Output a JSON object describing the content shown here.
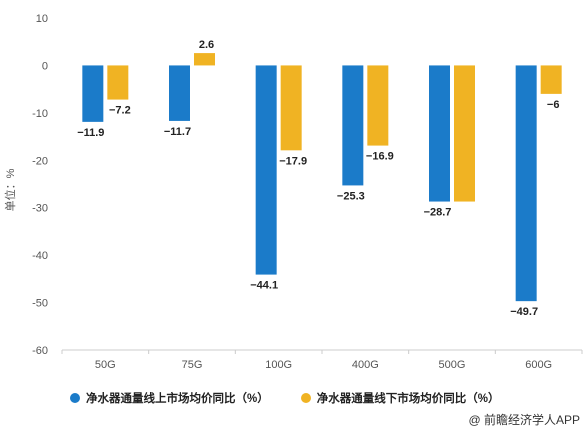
{
  "chart_data": {
    "type": "bar",
    "categories": [
      "50G",
      "75G",
      "100G",
      "400G",
      "500G",
      "600G"
    ],
    "series": [
      {
        "name": "净水器通量线上市场均价同比（%）",
        "color": "#1b7bc9",
        "values": [
          -11.9,
          -11.7,
          -44.1,
          -25.3,
          -28.7,
          -49.7
        ]
      },
      {
        "name": "净水器通量线下市场均价同比（%）",
        "color": "#f0b323",
        "values": [
          -7.2,
          2.6,
          -17.9,
          -16.9,
          -28.7,
          -6
        ]
      }
    ],
    "data_labels": [
      [
        "−11.9",
        "−11.7",
        "−44.1",
        "−25.3",
        "−28.7",
        "−49.7"
      ],
      [
        "−7.2",
        "2.6",
        "−17.9",
        "−16.9",
        "",
        "−6"
      ]
    ],
    "ylabel": "单位：%",
    "ylim": [
      -60,
      10
    ],
    "yticks": [
      10,
      0,
      -10,
      -20,
      -30,
      -40,
      -50,
      -60
    ],
    "grid": false,
    "legend_position": "bottom"
  },
  "source": "@ 前瞻经济学人APP"
}
